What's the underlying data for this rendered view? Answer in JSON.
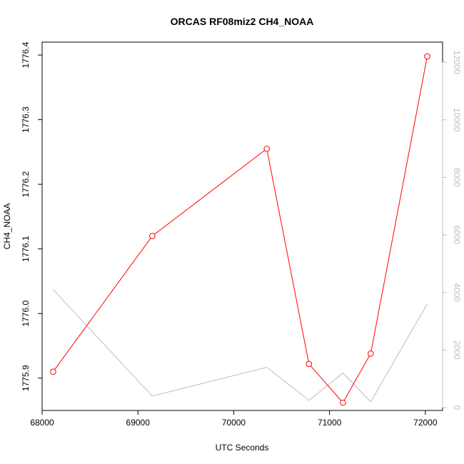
{
  "chart_data": {
    "type": "line",
    "title": "ORCAS RF08miz2 CH4_NOAA",
    "xlabel": "UTC Seconds",
    "ylabel": "CH4_NOAA",
    "xlim": [
      68000,
      72180
    ],
    "ylim": [
      1775.85,
      1776.42
    ],
    "y2lim": [
      -100,
      12700
    ],
    "x_ticks": [
      68000,
      69000,
      70000,
      71000,
      72000
    ],
    "y_ticks": [
      1775.9,
      1776.0,
      1776.1,
      1776.2,
      1776.3,
      1776.4
    ],
    "y_tick_labels": [
      "1775.9",
      "1776.0",
      "1776.1",
      "1776.2",
      "1776.3",
      "1776.4"
    ],
    "y2_ticks": [
      0,
      2000,
      4000,
      6000,
      8000,
      10000,
      12000
    ],
    "grid": false,
    "legend": "none",
    "series": [
      {
        "axis": "left",
        "color": "#ff0000",
        "markers": "open-circle",
        "x": [
          68115,
          69150,
          70345,
          70785,
          71140,
          71430,
          72020
        ],
        "y": [
          1775.91,
          1776.12,
          1776.255,
          1775.922,
          1775.862,
          1775.938,
          1776.398
        ]
      },
      {
        "axis": "right",
        "color": "#bebebe",
        "markers": "none",
        "x": [
          68115,
          69150,
          70345,
          70785,
          71140,
          71430,
          72020
        ],
        "y": [
          4100,
          400,
          1400,
          250,
          1200,
          200,
          3600
        ]
      }
    ]
  }
}
